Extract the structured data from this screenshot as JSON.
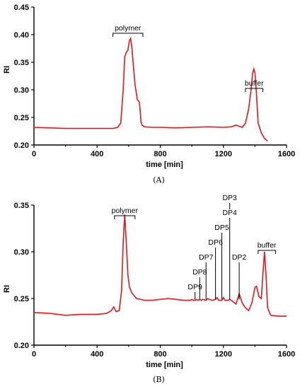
{
  "chart_data": [
    {
      "panel_label": "(A)",
      "type": "line",
      "xlabel": "time [min]",
      "ylabel": "RI",
      "xlim": [
        0,
        1600
      ],
      "ylim": [
        0.2,
        0.45
      ],
      "x_ticks": [
        0,
        400,
        800,
        1200,
        1600
      ],
      "y_ticks": [
        "0.20",
        "0.25",
        "0.30",
        "0.35",
        "0.40",
        "0.45"
      ],
      "series": [
        {
          "color": "#e8141c",
          "x": [
            0,
            100,
            200,
            300,
            400,
            450,
            500,
            530,
            550,
            565,
            575,
            585,
            595,
            605,
            612,
            620,
            628,
            640,
            655,
            668,
            672,
            678,
            685,
            700,
            750,
            800,
            900,
            1000,
            1100,
            1200,
            1250,
            1280,
            1300,
            1320,
            1340,
            1360,
            1375,
            1385,
            1393,
            1400,
            1410,
            1420,
            1440,
            1460,
            1480
          ],
          "y": [
            0.232,
            0.231,
            0.23,
            0.23,
            0.23,
            0.23,
            0.23,
            0.232,
            0.24,
            0.3,
            0.36,
            0.368,
            0.372,
            0.39,
            0.393,
            0.378,
            0.35,
            0.31,
            0.282,
            0.278,
            0.265,
            0.242,
            0.236,
            0.233,
            0.232,
            0.232,
            0.231,
            0.232,
            0.233,
            0.232,
            0.233,
            0.236,
            0.234,
            0.232,
            0.24,
            0.265,
            0.3,
            0.33,
            0.338,
            0.33,
            0.29,
            0.24,
            0.222,
            0.212,
            0.207
          ]
        }
      ],
      "annotations": [
        {
          "text": "polymer",
          "x_range": [
            500,
            690
          ]
        },
        {
          "text": "buffer",
          "x_range": [
            1340,
            1450
          ]
        }
      ]
    },
    {
      "panel_label": "(B)",
      "type": "line",
      "xlabel": "time [min]",
      "ylabel": "RI",
      "xlim": [
        0,
        1600
      ],
      "ylim": [
        0.2,
        0.35
      ],
      "x_ticks": [
        0,
        400,
        800,
        1200,
        1600
      ],
      "y_ticks": [
        "0.20",
        "0.25",
        "0.30",
        "0.35"
      ],
      "series": [
        {
          "color": "#e8141c",
          "x": [
            0,
            100,
            200,
            300,
            400,
            460,
            490,
            505,
            520,
            540,
            555,
            565,
            575,
            585,
            595,
            605,
            620,
            650,
            700,
            750,
            800,
            850,
            900,
            950,
            990,
            1000,
            1010,
            1020,
            1030,
            1040,
            1050,
            1060,
            1070,
            1090,
            1100,
            1110,
            1130,
            1150,
            1160,
            1170,
            1190,
            1200,
            1210,
            1230,
            1240,
            1250,
            1280,
            1300,
            1310,
            1320,
            1340,
            1360,
            1380,
            1400,
            1410,
            1425,
            1440,
            1450,
            1460,
            1470,
            1480,
            1500,
            1550,
            1600
          ],
          "y": [
            0.235,
            0.234,
            0.232,
            0.233,
            0.233,
            0.234,
            0.237,
            0.241,
            0.236,
            0.237,
            0.258,
            0.31,
            0.34,
            0.31,
            0.275,
            0.262,
            0.256,
            0.25,
            0.248,
            0.248,
            0.249,
            0.25,
            0.249,
            0.248,
            0.248,
            0.249,
            0.248,
            0.248,
            0.249,
            0.248,
            0.249,
            0.248,
            0.249,
            0.248,
            0.25,
            0.249,
            0.248,
            0.249,
            0.251,
            0.248,
            0.248,
            0.251,
            0.248,
            0.248,
            0.249,
            0.248,
            0.244,
            0.255,
            0.25,
            0.245,
            0.24,
            0.237,
            0.245,
            0.262,
            0.263,
            0.252,
            0.25,
            0.275,
            0.3,
            0.275,
            0.24,
            0.232,
            0.231,
            0.231
          ]
        }
      ],
      "annotations": [
        {
          "text": "polymer",
          "x_range": [
            510,
            640
          ]
        },
        {
          "text": "buffer",
          "x_range": [
            1420,
            1530
          ]
        },
        {
          "text": "DP9",
          "x": 1020
        },
        {
          "text": "DP8",
          "x": 1050
        },
        {
          "text": "DP7",
          "x": 1090
        },
        {
          "text": "DP6",
          "x": 1150
        },
        {
          "text": "DP5",
          "x": 1190
        },
        {
          "text": "DP4",
          "x": 1240
        },
        {
          "text": "DP3",
          "x": 1240
        },
        {
          "text": "DP2",
          "x": 1300
        }
      ]
    }
  ]
}
